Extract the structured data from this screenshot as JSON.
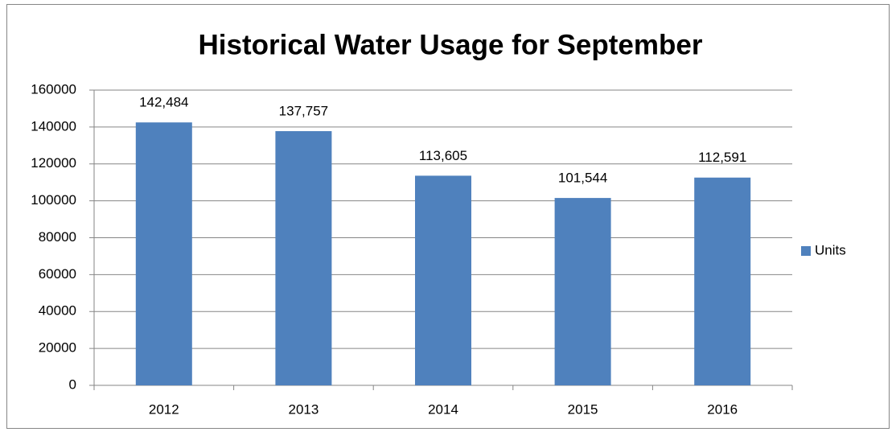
{
  "chart_data": {
    "type": "bar",
    "title": "Historical Water Usage for September",
    "categories": [
      "2012",
      "2013",
      "2014",
      "2015",
      "2016"
    ],
    "series": [
      {
        "name": "Units",
        "color": "#4f81bd",
        "values": [
          142484,
          137757,
          113605,
          101544,
          112591
        ],
        "value_labels": [
          "142,484",
          "137,757",
          "113,605",
          "101,544",
          "112,591"
        ]
      }
    ],
    "ylim": [
      0,
      160000
    ],
    "yticks": [
      0,
      20000,
      40000,
      60000,
      80000,
      100000,
      120000,
      140000,
      160000
    ],
    "grid": true,
    "legend": "right"
  }
}
